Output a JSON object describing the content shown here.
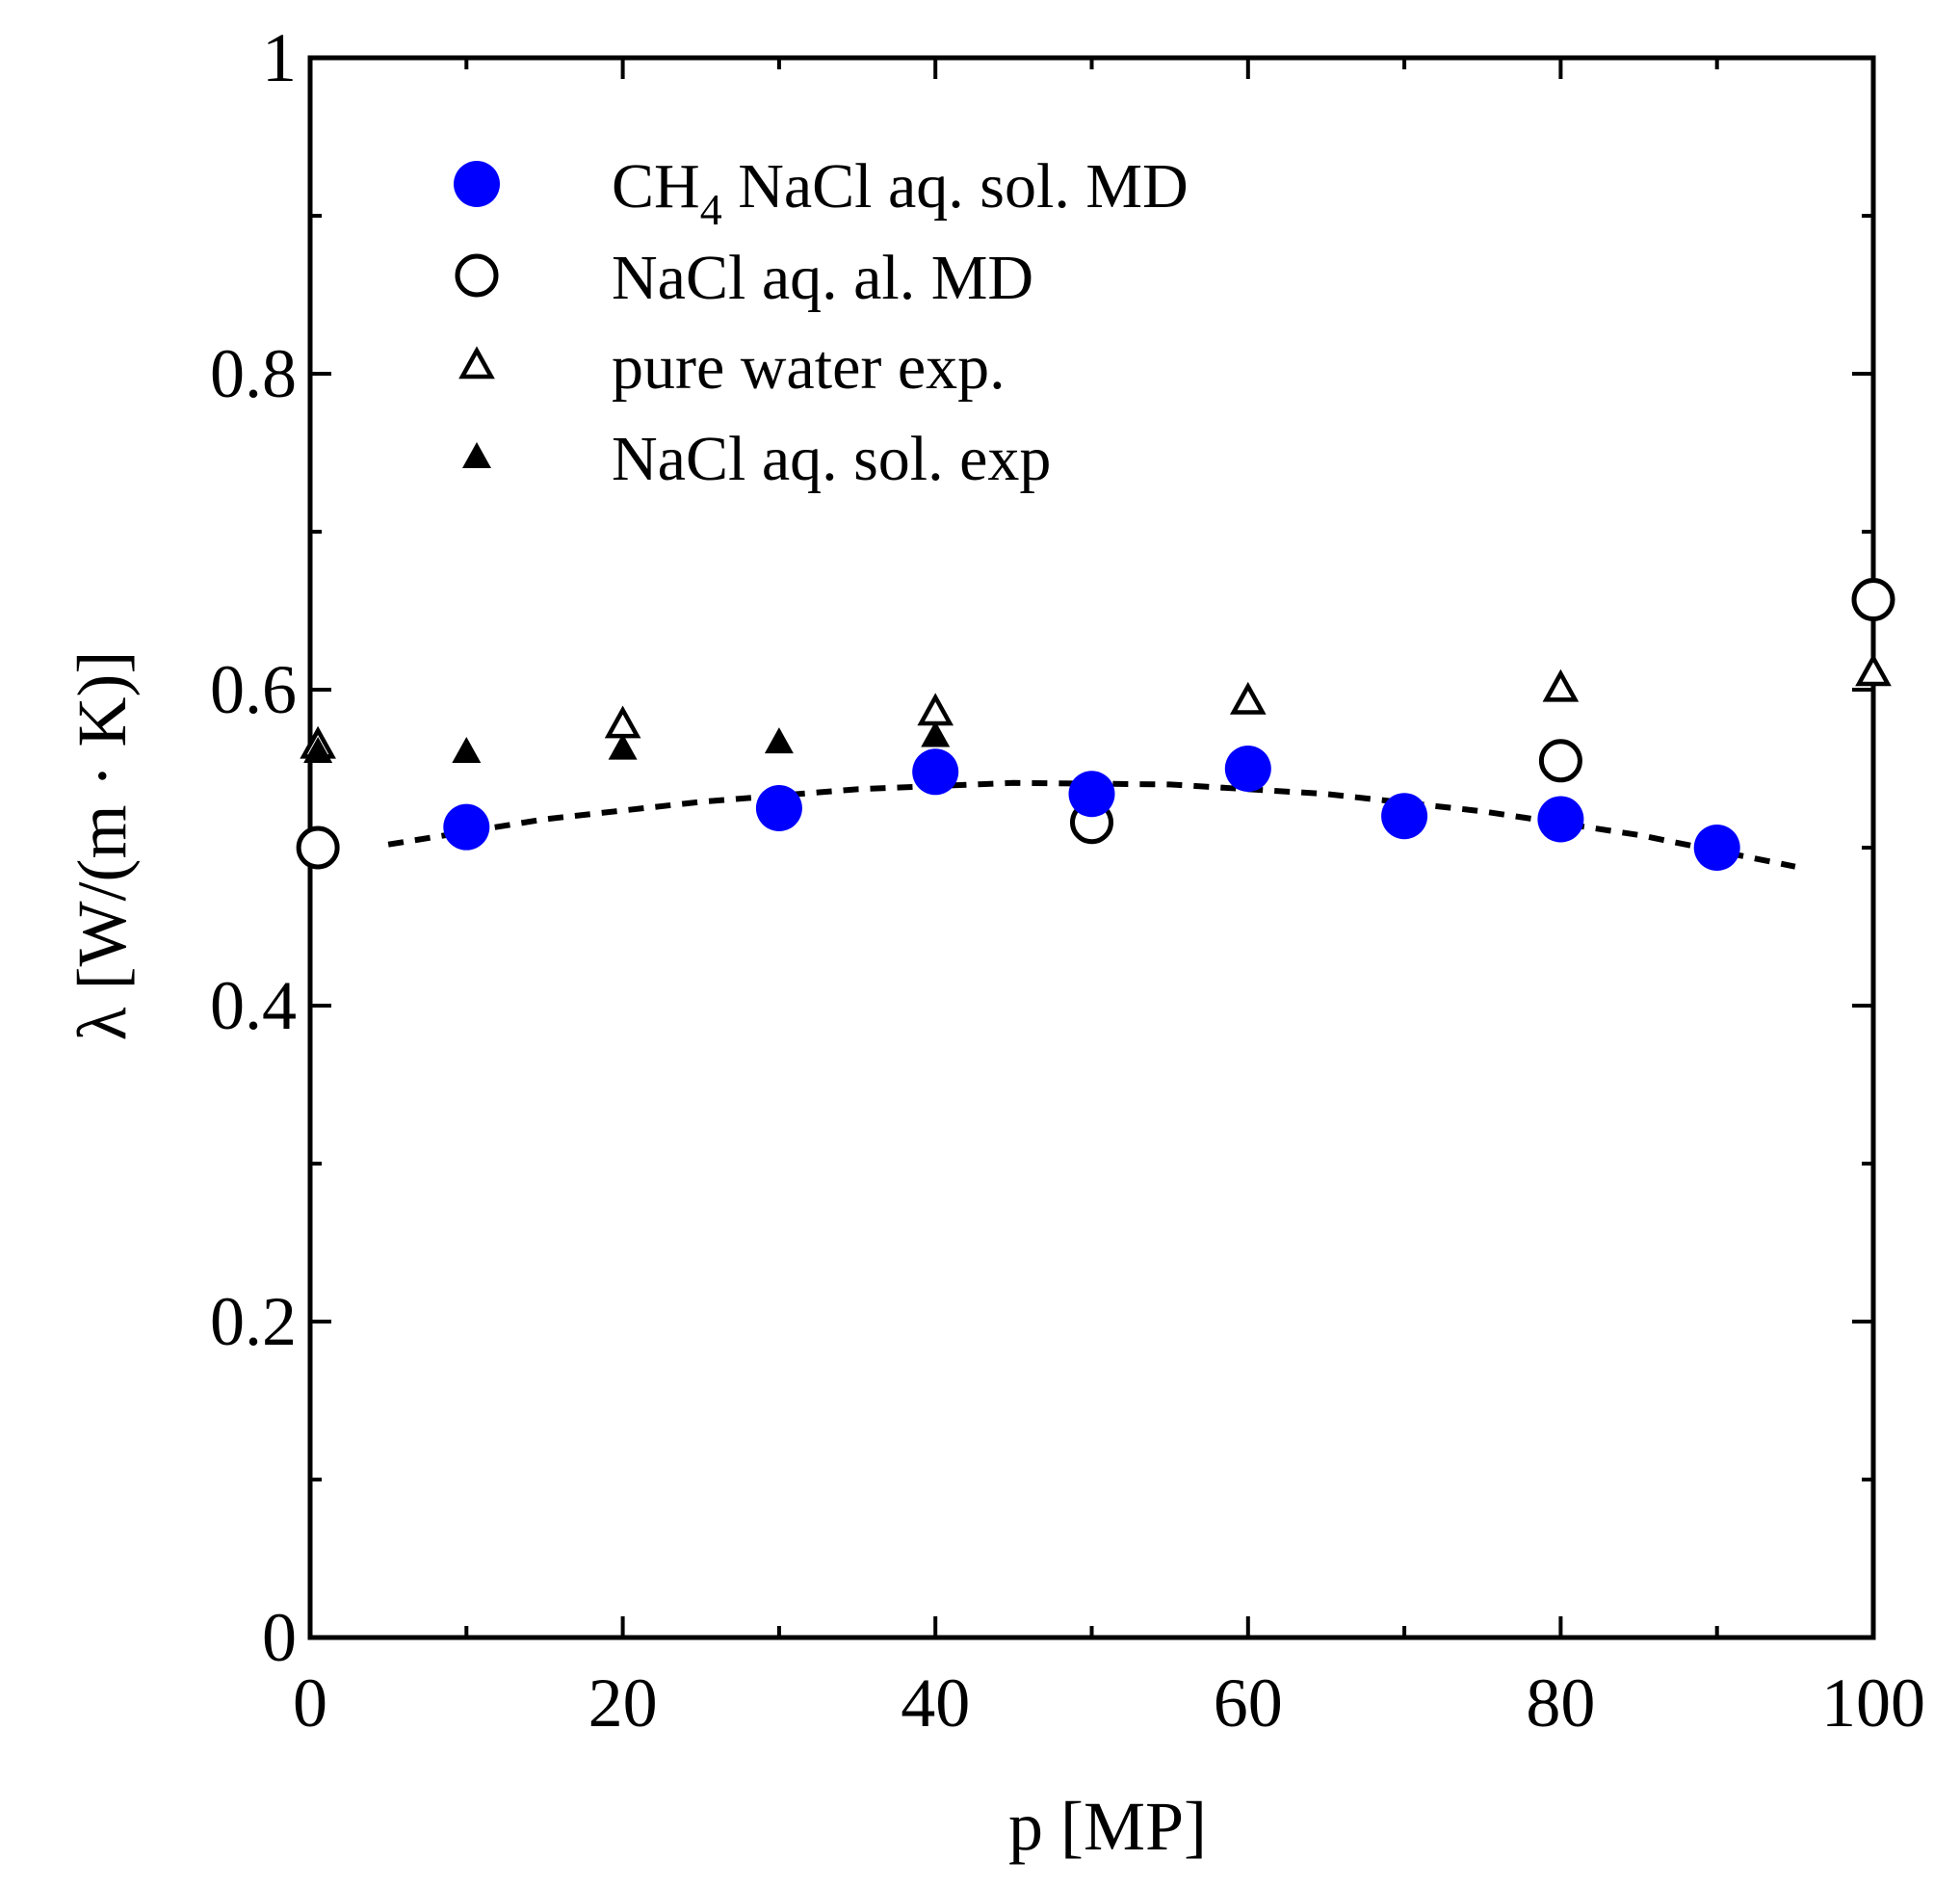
{
  "chart_data": {
    "type": "scatter",
    "xlabel": "p [MP]",
    "ylabel": "λ [W/(m · K)]",
    "xlim": [
      0,
      100
    ],
    "ylim": [
      0,
      1
    ],
    "xticks": [
      0,
      20,
      40,
      60,
      80,
      100
    ],
    "xtick_labels": [
      "0",
      "20",
      "40",
      "60",
      "80",
      "100"
    ],
    "yticks": [
      0,
      0.2,
      0.4,
      0.6,
      0.8,
      1
    ],
    "ytick_labels": [
      "0",
      "0.2",
      "0.4",
      "0.6",
      "0.8",
      "1"
    ],
    "legend_position": "top-left",
    "series": [
      {
        "name": "CH4 NaCl aq. sol. MD",
        "label_main": "CH",
        "label_sub": "4",
        "label_rest": " NaCl  aq. sol. MD",
        "marker": "filled-circle",
        "color": "#0000ff",
        "x": [
          10,
          30,
          40,
          50,
          60,
          70,
          80,
          90
        ],
        "y": [
          0.513,
          0.525,
          0.548,
          0.534,
          0.55,
          0.52,
          0.518,
          0.5
        ]
      },
      {
        "name": "NaCl aq. al. MD",
        "marker": "open-circle",
        "color": "#000000",
        "x": [
          0.5,
          50,
          80,
          100
        ],
        "y": [
          0.5,
          0.516,
          0.555,
          0.657
        ]
      },
      {
        "name": "pure water exp.",
        "marker": "open-triangle",
        "color": "#000000",
        "x": [
          0.5,
          20,
          40,
          60,
          80,
          100
        ],
        "y": [
          0.565,
          0.578,
          0.586,
          0.593,
          0.601,
          0.611
        ]
      },
      {
        "name": "NaCl aq. sol. exp",
        "marker": "filled-triangle",
        "color": "#000000",
        "x": [
          0.5,
          10,
          20,
          30,
          40
        ],
        "y": [
          0.561,
          0.561,
          0.563,
          0.567,
          0.571
        ]
      }
    ],
    "fit_line": {
      "style": "dashed",
      "color": "#000000",
      "x": [
        5,
        15,
        25,
        35,
        45,
        55,
        65,
        75,
        85,
        95
      ],
      "y": [
        0.502,
        0.518,
        0.529,
        0.537,
        0.541,
        0.54,
        0.534,
        0.523,
        0.508,
        0.488
      ]
    }
  }
}
